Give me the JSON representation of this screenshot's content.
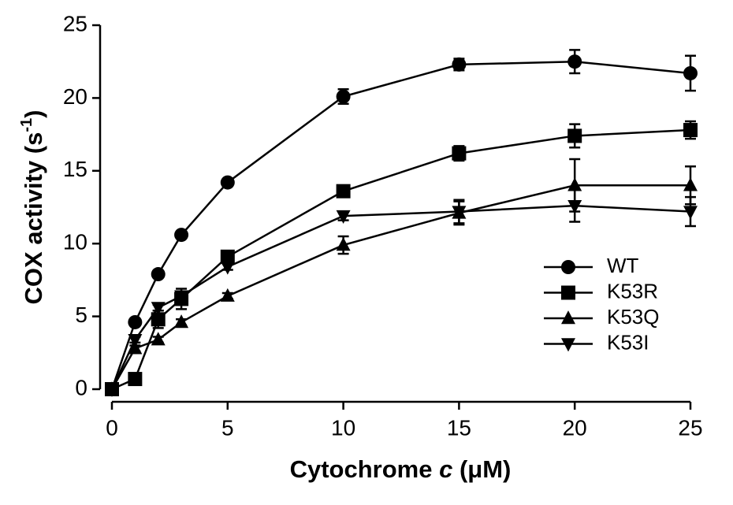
{
  "chart_data": {
    "type": "line",
    "x_label": [
      "Cytochrome ",
      "c",
      " (μM)"
    ],
    "y_label": [
      "COX activity (s",
      "-1",
      ")"
    ],
    "x": [
      0,
      1,
      2,
      3,
      5,
      10,
      15,
      20,
      25
    ],
    "xlim": [
      0,
      25
    ],
    "xticks": [
      0,
      5,
      10,
      15,
      20,
      25
    ],
    "ylim": [
      0,
      25
    ],
    "yticks": [
      0,
      5,
      10,
      15,
      20,
      25
    ],
    "legend": "right",
    "series": [
      {
        "name": "WT",
        "color": "#000000",
        "marker": "circle",
        "values": [
          0,
          4.6,
          7.9,
          10.6,
          14.2,
          20.1,
          22.3,
          22.5,
          21.7
        ],
        "errors": [
          0,
          0.2,
          0.2,
          0.2,
          0.2,
          0.5,
          0.4,
          0.8,
          1.2
        ]
      },
      {
        "name": "K53R",
        "color": "#000000",
        "marker": "square",
        "values": [
          0,
          0.7,
          4.8,
          6.2,
          9.1,
          13.6,
          16.2,
          17.4,
          17.8
        ],
        "errors": [
          0,
          0.2,
          0.6,
          0.7,
          0.2,
          0.3,
          0.5,
          0.8,
          0.6
        ]
      },
      {
        "name": "K53Q",
        "color": "#000000",
        "marker": "triangle",
        "values": [
          0,
          2.8,
          3.4,
          4.6,
          6.4,
          9.9,
          12.1,
          14.0,
          14.0
        ],
        "errors": [
          0,
          0.2,
          0.2,
          0.2,
          0.2,
          0.6,
          0.8,
          1.8,
          1.3
        ]
      },
      {
        "name": "K53I",
        "color": "#000000",
        "marker": "triangle-down",
        "values": [
          0,
          3.4,
          5.6,
          6.4,
          8.4,
          11.9,
          12.2,
          12.6,
          12.2
        ],
        "errors": [
          0,
          0.2,
          0.2,
          0.2,
          0.2,
          0.3,
          0.8,
          1.1,
          1.0
        ]
      }
    ]
  }
}
